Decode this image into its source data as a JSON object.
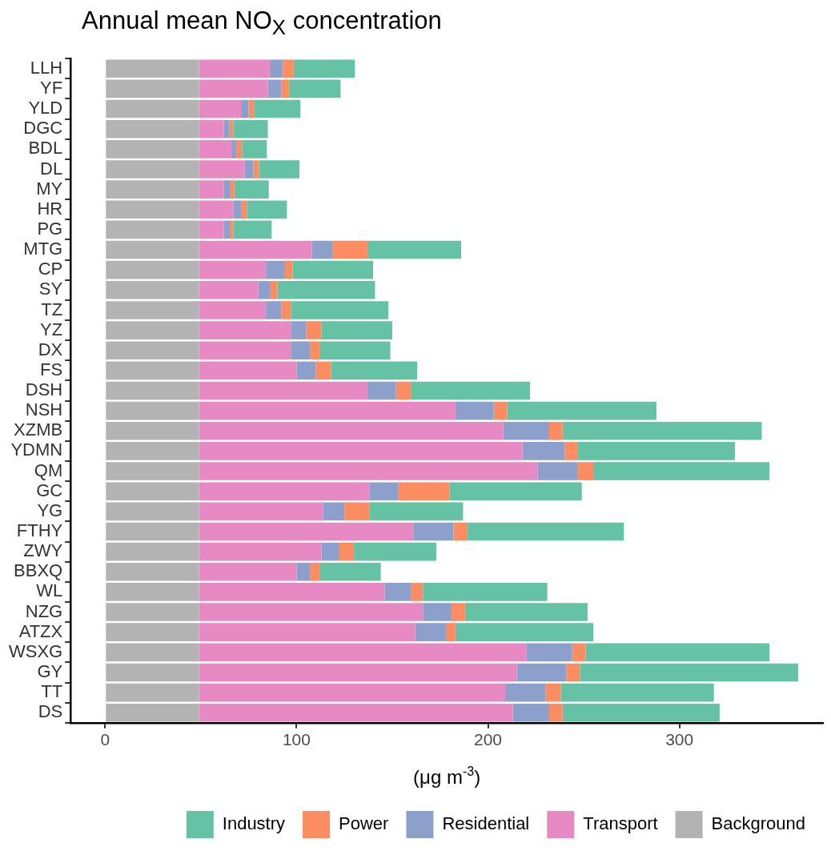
{
  "chart_data": {
    "type": "bar",
    "orientation": "horizontal",
    "stacked": true,
    "title": "Annual mean NO$_{X}$ concentration",
    "xlabel": "(μg m$^{-3}$)",
    "categories": [
      "LLH",
      "YF",
      "YLD",
      "DGC",
      "BDL",
      "DL",
      "MY",
      "HR",
      "PG",
      "MTG",
      "CP",
      "SY",
      "TZ",
      "YZ",
      "DX",
      "FS",
      "DSH",
      "NSH",
      "XZMB",
      "YDMN",
      "QM",
      "GC",
      "YG",
      "FTHY",
      "ZWY",
      "BBXQ",
      "WL",
      "NZG",
      "ATZX",
      "WSXG",
      "GY",
      "TT",
      "DS"
    ],
    "series": [
      {
        "name": "Background",
        "color": "#b3b3b3",
        "values": [
          49,
          49,
          49,
          49,
          49,
          49,
          49,
          49,
          49,
          49,
          49,
          49,
          49,
          49,
          49,
          49,
          49,
          49,
          49,
          49,
          49,
          49,
          49,
          49,
          49,
          49,
          49,
          49,
          49,
          49,
          49,
          49,
          49
        ]
      },
      {
        "name": "Transport",
        "color": "#e78ac3",
        "values": [
          37,
          36,
          22,
          13,
          17,
          24,
          13,
          18,
          13,
          59,
          35,
          31,
          35,
          48,
          48,
          51,
          88,
          134,
          159,
          169,
          177,
          89,
          65,
          112,
          64,
          51,
          97,
          117,
          113,
          171,
          166,
          160,
          164
        ]
      },
      {
        "name": "Residential",
        "color": "#8da0cb",
        "values": [
          7,
          7,
          4,
          3,
          2.5,
          4.5,
          3.5,
          4,
          3.5,
          11,
          10,
          6,
          8,
          8,
          10,
          10,
          15,
          20,
          24,
          22,
          21,
          15,
          11,
          21,
          9,
          7,
          14,
          15,
          16,
          24,
          26,
          21,
          19
        ]
      },
      {
        "name": "Power",
        "color": "#fc8d62",
        "values": [
          5.5,
          4,
          3,
          2,
          3,
          3,
          2,
          3,
          1.5,
          18,
          4,
          4,
          5,
          8,
          5,
          8,
          8,
          7,
          7,
          7,
          8,
          27,
          13,
          7,
          8,
          5,
          6,
          7,
          5,
          7,
          7,
          8,
          7
        ]
      },
      {
        "name": "Industry",
        "color": "#66c2a5",
        "values": [
          32,
          27,
          24,
          18,
          13,
          21,
          18,
          21,
          20,
          49,
          42,
          51,
          51,
          37,
          37,
          45,
          62,
          78,
          104,
          82,
          92,
          69,
          49,
          82,
          43,
          32,
          65,
          64,
          72,
          96,
          114,
          80,
          82
        ]
      }
    ],
    "xlim": [
      -18,
      375
    ],
    "xticks": [
      0,
      100,
      200,
      300
    ],
    "grid": false,
    "legend": "bottom"
  }
}
